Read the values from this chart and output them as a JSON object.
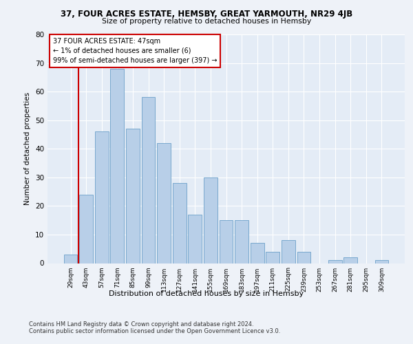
{
  "title1": "37, FOUR ACRES ESTATE, HEMSBY, GREAT YARMOUTH, NR29 4JB",
  "title2": "Size of property relative to detached houses in Hemsby",
  "xlabel": "Distribution of detached houses by size in Hemsby",
  "ylabel": "Number of detached properties",
  "categories": [
    "29sqm",
    "43sqm",
    "57sqm",
    "71sqm",
    "85sqm",
    "99sqm",
    "113sqm",
    "127sqm",
    "141sqm",
    "155sqm",
    "169sqm",
    "183sqm",
    "197sqm",
    "211sqm",
    "225sqm",
    "239sqm",
    "253sqm",
    "267sqm",
    "281sqm",
    "295sqm",
    "309sqm"
  ],
  "values": [
    3,
    24,
    46,
    68,
    47,
    58,
    42,
    28,
    17,
    30,
    15,
    15,
    7,
    4,
    8,
    4,
    0,
    1,
    2,
    0,
    1
  ],
  "bar_color": "#b8cfe8",
  "bar_edge_color": "#6aa0c8",
  "annotation_line1": "37 FOUR ACRES ESTATE: 47sqm",
  "annotation_line2": "← 1% of detached houses are smaller (6)",
  "annotation_line3": "99% of semi-detached houses are larger (397) →",
  "ref_line_color": "#cc0000",
  "annotation_box_edge_color": "#cc0000",
  "footer1": "Contains HM Land Registry data © Crown copyright and database right 2024.",
  "footer2": "Contains public sector information licensed under the Open Government Licence v3.0.",
  "ylim": [
    0,
    80
  ],
  "background_color": "#eef2f8",
  "plot_bg_color": "#e4ecf6"
}
